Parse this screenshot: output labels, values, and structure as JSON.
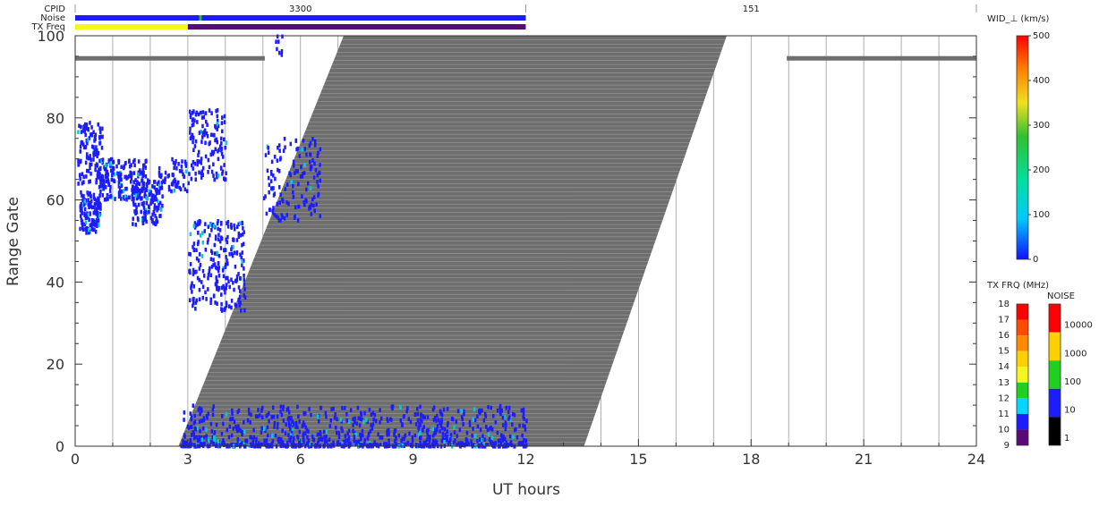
{
  "header": {
    "row_labels": [
      "CPID",
      "Noise",
      "TX Freq"
    ],
    "cpid_segments": [
      {
        "label": "3300",
        "x_start": 0,
        "x_end": 12
      },
      {
        "label": "151",
        "x_start": 12,
        "x_end": 24
      }
    ],
    "noise_color": "#1c1cff",
    "txfreq_segments": [
      {
        "x_start": 0,
        "x_end": 3,
        "color": "#f5f520"
      },
      {
        "x_start": 3,
        "x_end": 12,
        "color": "#5a0a78"
      }
    ]
  },
  "colorbars": {
    "wid": {
      "title": "WID_⊥ (km/s)",
      "ticks": [
        "500",
        "400",
        "300",
        "200",
        "100",
        "0"
      ]
    },
    "txfrq": {
      "title": "TX FRQ (MHz)",
      "ticks": [
        "18",
        "17",
        "16",
        "15",
        "14",
        "13",
        "12",
        "11",
        "10",
        "9"
      ]
    },
    "noise": {
      "title": "NOISE",
      "ticks": [
        "10000",
        "1000",
        "100",
        "10",
        "1"
      ]
    }
  },
  "chart_data": {
    "type": "heatmap",
    "xlabel": "UT hours",
    "ylabel": "Range Gate",
    "xlim": [
      0,
      24
    ],
    "ylim": [
      0,
      100
    ],
    "xticks": [
      0,
      3,
      6,
      9,
      12,
      15,
      18,
      21,
      24
    ],
    "yticks": [
      0,
      20,
      40,
      60,
      80,
      100
    ],
    "vertical_gridlines_every_hours": 1,
    "ground_scatter_color": "#6e6e6e",
    "ground_scatter_region": {
      "polygon_ut_gate": [
        [
          2.75,
          0
        ],
        [
          13.55,
          0
        ],
        [
          17.35,
          100
        ],
        [
          7.15,
          100
        ]
      ],
      "white_line_gate_spacing": 1
    },
    "horizontal_bands": [
      {
        "x_start": 0,
        "x_end": 5.05,
        "gate": 94.5
      },
      {
        "x_start": 18.95,
        "x_end": 24,
        "gate": 94.5
      }
    ],
    "scatter_clusters": [
      {
        "name": "cluster-early-morning-low",
        "x": [
          0.1,
          0.65
        ],
        "y": [
          52,
          62
        ],
        "count": 130,
        "color": "#1c1cff"
      },
      {
        "name": "cluster-early-morning-high",
        "x": [
          0.05,
          0.7
        ],
        "y": [
          64,
          79
        ],
        "count": 110,
        "color": "#1c1cff"
      },
      {
        "name": "cluster-band-1",
        "x": [
          0.6,
          1.9
        ],
        "y": [
          60,
          70
        ],
        "count": 200,
        "color": "#1c1cff"
      },
      {
        "name": "cluster-band-2",
        "x": [
          1.5,
          2.3
        ],
        "y": [
          54,
          65
        ],
        "count": 130,
        "color": "#1c1cff"
      },
      {
        "name": "cluster-band-3",
        "x": [
          2.2,
          3.0
        ],
        "y": [
          62,
          70
        ],
        "count": 60,
        "color": "#1c1cff"
      },
      {
        "name": "cluster-rising-1",
        "x": [
          3.0,
          4.0
        ],
        "y": [
          65,
          82
        ],
        "count": 130,
        "color": "#1c1cff"
      },
      {
        "name": "cluster-rising-2",
        "x": [
          3.0,
          4.5
        ],
        "y": [
          33,
          55
        ],
        "count": 240,
        "color": "#1c1cff"
      },
      {
        "name": "cluster-rising-3",
        "x": [
          5.0,
          6.5
        ],
        "y": [
          55,
          75
        ],
        "count": 140,
        "color": "#1c1cff"
      },
      {
        "name": "cluster-near-ground",
        "x": [
          2.8,
          12.0
        ],
        "y": [
          0,
          10
        ],
        "count": 900,
        "color": "#1c1cff"
      },
      {
        "name": "cluster-top",
        "x": [
          5.3,
          5.6
        ],
        "y": [
          95,
          100
        ],
        "count": 8,
        "color": "#1c1cff"
      }
    ]
  }
}
